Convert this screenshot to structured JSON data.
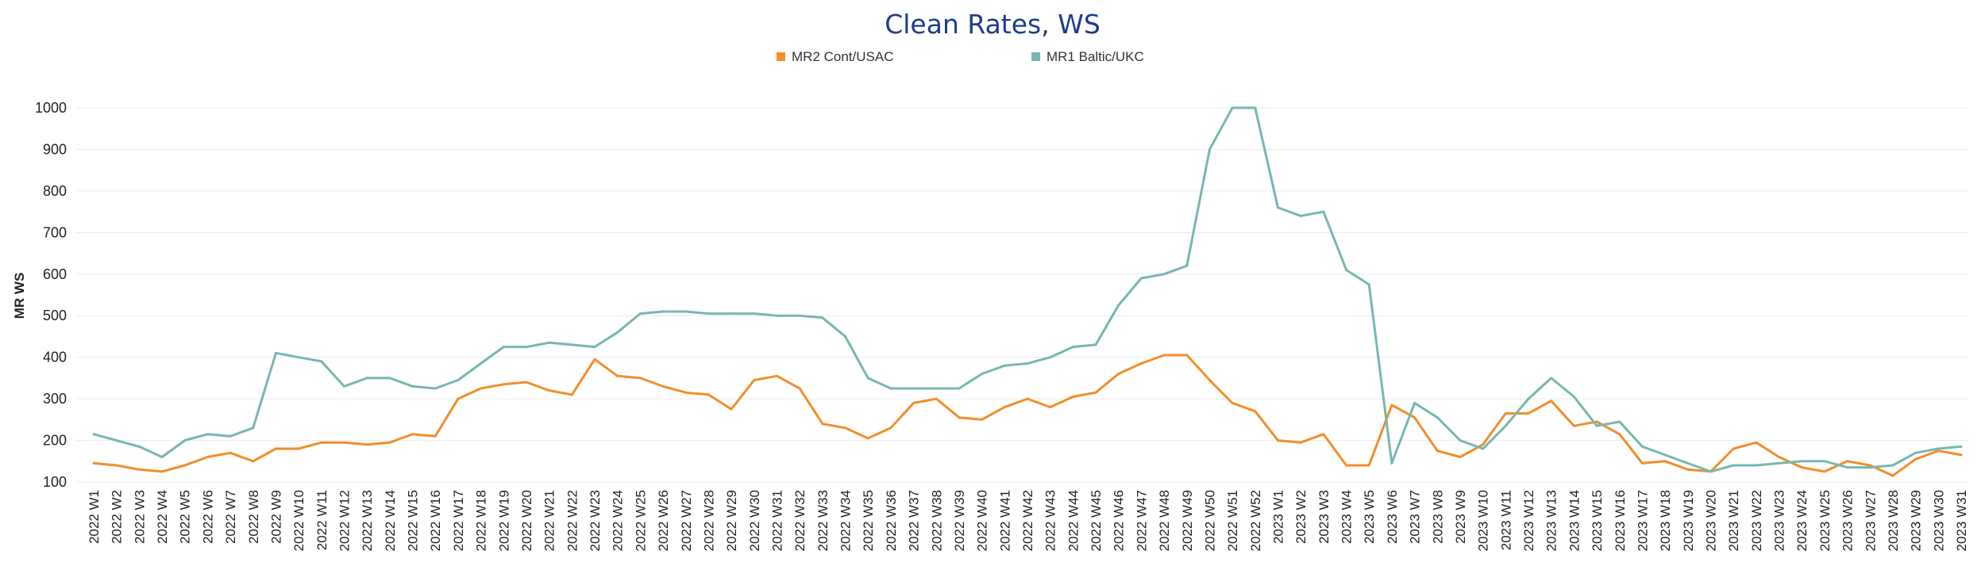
{
  "chart_data": {
    "type": "line",
    "title": "Clean Rates, WS",
    "xlabel": "",
    "ylabel": "MR WS",
    "ylim": [
      100,
      1000
    ],
    "yticks": [
      100,
      200,
      300,
      400,
      500,
      600,
      700,
      800,
      900,
      1000
    ],
    "grid": "horizontal",
    "legend_position": "top-center",
    "x": [
      "2022 W1",
      "2022 W2",
      "2022 W3",
      "2022 W4",
      "2022 W5",
      "2022 W6",
      "2022 W7",
      "2022 W8",
      "2022 W9",
      "2022 W10",
      "2022 W11",
      "2022 W12",
      "2022 W13",
      "2022 W14",
      "2022 W15",
      "2022 W16",
      "2022 W17",
      "2022 W18",
      "2022 W19",
      "2022 W20",
      "2022 W21",
      "2022 W22",
      "2022 W23",
      "2022 W24",
      "2022 W25",
      "2022 W26",
      "2022 W27",
      "2022 W28",
      "2022 W29",
      "2022 W30",
      "2022 W31",
      "2022 W32",
      "2022 W33",
      "2022 W34",
      "2022 W35",
      "2022 W36",
      "2022 W37",
      "2022 W38",
      "2022 W39",
      "2022 W40",
      "2022 W41",
      "2022 W42",
      "2022 W43",
      "2022 W44",
      "2022 W45",
      "2022 W46",
      "2022 W47",
      "2022 W48",
      "2022 W49",
      "2022 W50",
      "2022 W51",
      "2022 W52",
      "2023 W1",
      "2023 W2",
      "2023 W3",
      "2023 W4",
      "2023 W5",
      "2023 W6",
      "2023 W7",
      "2023 W8",
      "2023 W9",
      "2023 W10",
      "2023 W11",
      "2023 W12",
      "2023 W13",
      "2023 W14",
      "2023 W15",
      "2023 W16",
      "2023 W17",
      "2023 W18",
      "2023 W19",
      "2023 W20",
      "2023 W21",
      "2023 W22",
      "2023 W23",
      "2023 W24",
      "2023 W25",
      "2023 W26",
      "2023 W27",
      "2023 W28",
      "2023 W29",
      "2023 W30",
      "2023 W31"
    ],
    "series": [
      {
        "name": "MR2 Cont/USAC",
        "color": "#F28E2B",
        "values": [
          145,
          140,
          130,
          125,
          140,
          160,
          170,
          150,
          180,
          180,
          195,
          195,
          190,
          195,
          215,
          210,
          300,
          325,
          335,
          340,
          320,
          310,
          395,
          355,
          350,
          330,
          315,
          310,
          275,
          345,
          355,
          325,
          240,
          230,
          205,
          230,
          290,
          300,
          255,
          250,
          280,
          300,
          280,
          305,
          315,
          360,
          385,
          405,
          405,
          345,
          290,
          270,
          200,
          195,
          215,
          140,
          140,
          285,
          255,
          175,
          160,
          190,
          265,
          265,
          295,
          235,
          245,
          215,
          145,
          150,
          130,
          125,
          180,
          195,
          160,
          135,
          125,
          150,
          140,
          115,
          155,
          175,
          165
        ]
      },
      {
        "name": "MR1 Baltic/UKC",
        "color": "#76B7B2",
        "values": [
          215,
          200,
          185,
          160,
          200,
          215,
          210,
          230,
          410,
          400,
          390,
          330,
          350,
          350,
          330,
          325,
          345,
          385,
          425,
          425,
          435,
          430,
          425,
          460,
          505,
          510,
          510,
          505,
          505,
          505,
          500,
          500,
          495,
          450,
          350,
          325,
          325,
          325,
          325,
          360,
          380,
          385,
          400,
          425,
          430,
          525,
          590,
          600,
          620,
          900,
          1000,
          1000,
          760,
          740,
          750,
          610,
          575,
          145,
          290,
          255,
          200,
          180,
          235,
          300,
          350,
          305,
          235,
          245,
          185,
          165,
          145,
          125,
          140,
          140,
          145,
          150,
          150,
          135,
          135,
          140,
          170,
          180,
          185
        ]
      }
    ]
  }
}
